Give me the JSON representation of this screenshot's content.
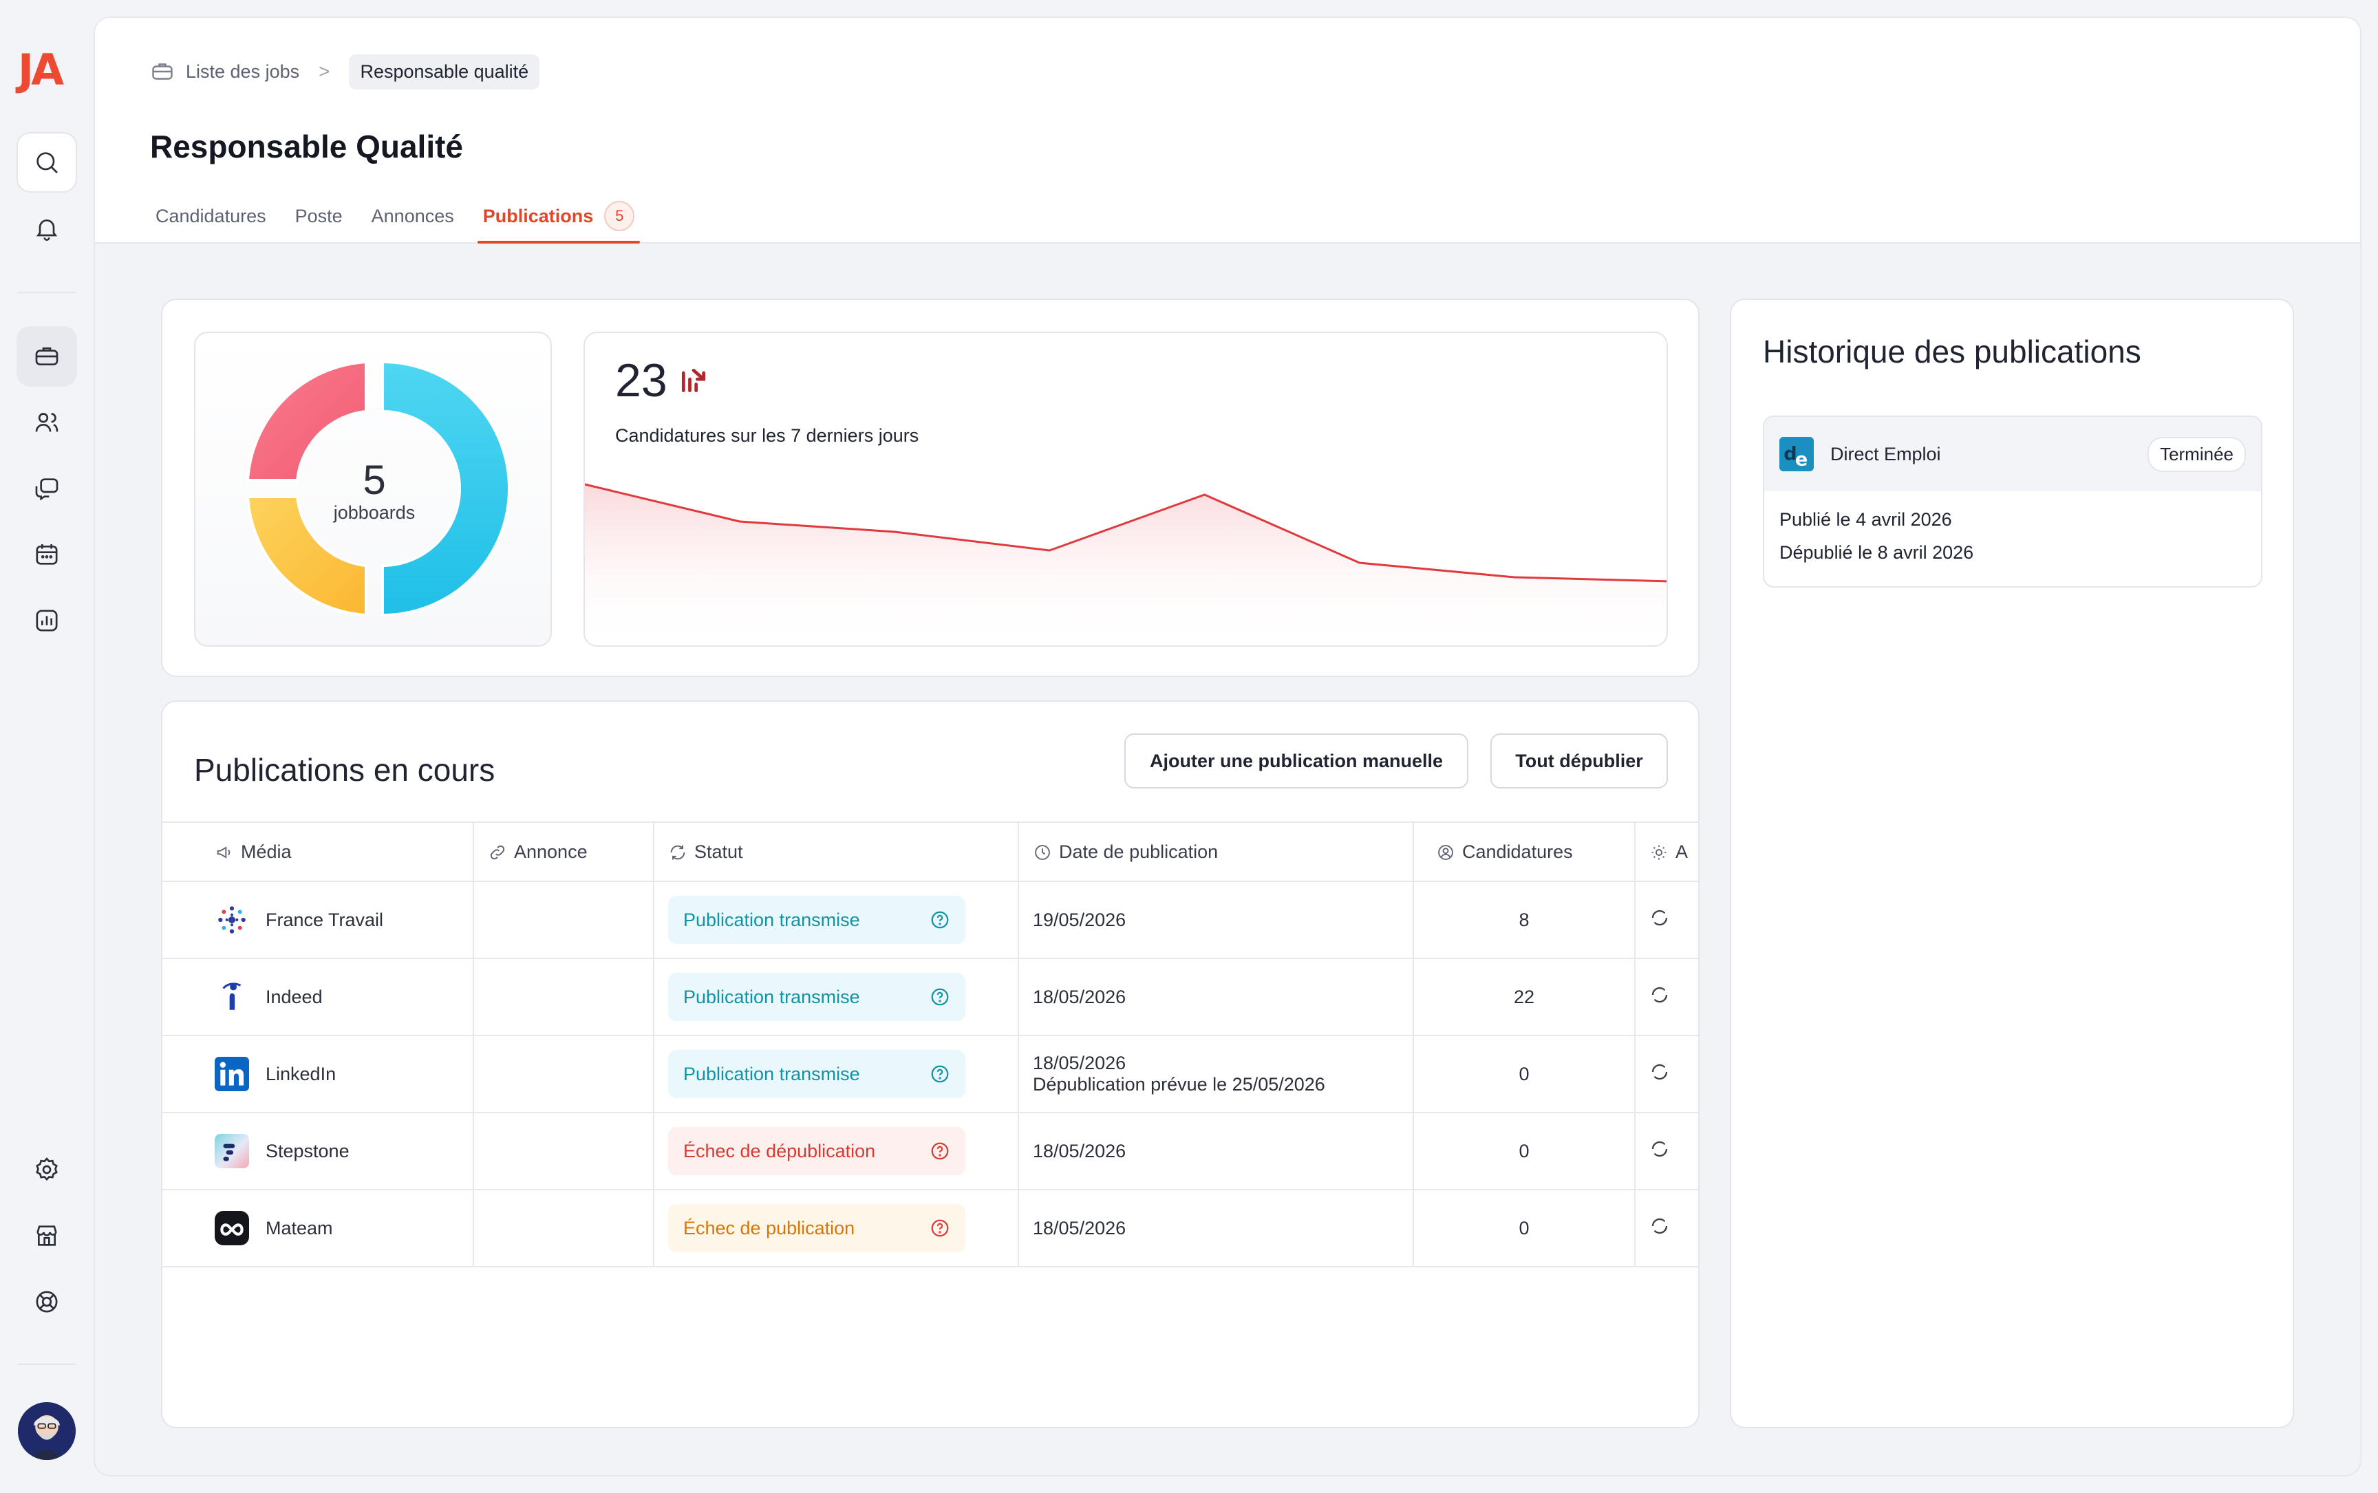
{
  "app": {
    "logo": "JA"
  },
  "sidebar": {
    "top": [
      {
        "name": "search-icon"
      },
      {
        "name": "bell-icon"
      }
    ],
    "nav": [
      {
        "name": "briefcase-icon",
        "active": true
      },
      {
        "name": "users-icon"
      },
      {
        "name": "chat-icon"
      },
      {
        "name": "calendar-icon"
      },
      {
        "name": "chart-icon"
      }
    ],
    "bottom": [
      {
        "name": "gear-icon"
      },
      {
        "name": "store-icon"
      },
      {
        "name": "lifebuoy-icon"
      }
    ]
  },
  "breadcrumb": {
    "parent": "Liste des jobs",
    "separator": ">",
    "current": "Responsable qualité"
  },
  "page_title": "Responsable Qualité",
  "tabs": [
    {
      "label": "Candidatures"
    },
    {
      "label": "Poste"
    },
    {
      "label": "Annonces"
    },
    {
      "label": "Publications",
      "badge": "5",
      "active": true
    }
  ],
  "stats": {
    "jobboards_count": "5",
    "jobboards_label": "jobboards",
    "applications_count": "23",
    "applications_label": "Candidatures sur les 7 derniers jours",
    "trend_points": [
      100,
      82,
      77,
      68,
      95,
      62,
      55,
      53
    ],
    "colors": {
      "line": "#e0393e",
      "donut_red": "#f3687c",
      "donut_blue": "#31c9ee",
      "donut_yellow": "#fdc43f"
    }
  },
  "history": {
    "title": "Historique des publications",
    "items": [
      {
        "media": "Direct Emploi",
        "status": "Terminée",
        "published_prefix": "Publié le",
        "published_date": "4 avril 2026",
        "unpublished_prefix": "Dépublié le",
        "unpublished_date": "8 avril 2026"
      }
    ]
  },
  "publications": {
    "title": "Publications en cours",
    "add_manual_label": "Ajouter une publication manuelle",
    "unpublish_all_label": "Tout dépublier",
    "columns": [
      "Média",
      "Annonce",
      "Statut",
      "Date de publication",
      "Candidatures",
      "A"
    ],
    "rows": [
      {
        "media": "France Travail",
        "logo": "france-travail-logo",
        "status": "Publication transmise",
        "status_kind": "ok",
        "date": "19/05/2026",
        "date_extra": "",
        "applications": "8"
      },
      {
        "media": "Indeed",
        "logo": "indeed-logo",
        "status": "Publication transmise",
        "status_kind": "ok",
        "date": "18/05/2026",
        "date_extra": "",
        "applications": "22"
      },
      {
        "media": "LinkedIn",
        "logo": "linkedin-logo",
        "status": "Publication transmise",
        "status_kind": "ok",
        "date": "18/05/2026",
        "date_extra": "Dépublication prévue le 25/05/2026",
        "applications": "0"
      },
      {
        "media": "Stepstone",
        "logo": "stepstone-logo",
        "status": "Échec de dépublication",
        "status_kind": "fail",
        "date": "18/05/2026",
        "date_extra": "",
        "applications": "0"
      },
      {
        "media": "Mateam",
        "logo": "mateam-logo",
        "status": "Échec de publication",
        "status_kind": "warn",
        "date": "18/05/2026",
        "date_extra": "",
        "applications": "0"
      }
    ]
  }
}
